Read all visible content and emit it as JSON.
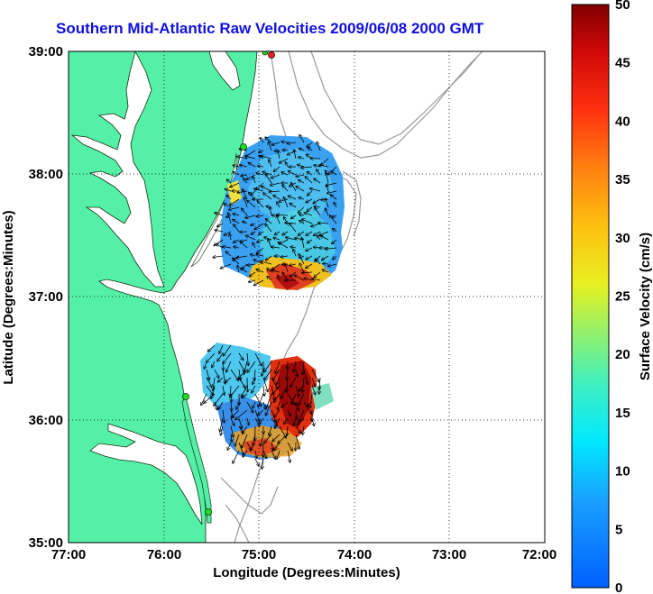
{
  "title": "Southern Mid-Atlantic Raw Velocities 2009/06/08 2000 GMT",
  "x_axis": {
    "label": "Longitude (Degrees:Minutes)",
    "ticks": [
      "77:00",
      "76:00",
      "75:00",
      "74:00",
      "73:00",
      "72:00"
    ]
  },
  "y_axis": {
    "label": "Latitude (Degrees:Minutes)",
    "ticks": [
      "39:00",
      "38:00",
      "37:00",
      "36:00",
      "35:00"
    ]
  },
  "colorbar": {
    "label": "Surface Velocity (cm/s)",
    "ticks": [
      "50",
      "45",
      "40",
      "35",
      "30",
      "25",
      "20",
      "15",
      "10",
      "5",
      "0"
    ],
    "min": 0,
    "max": 50
  },
  "colors": {
    "land": "#55f0a8",
    "ocean": "#ffffff",
    "grid": "#000000",
    "bathymetry": "#999999",
    "station": "#22dd22",
    "station_alt": "#ee2222"
  }
}
